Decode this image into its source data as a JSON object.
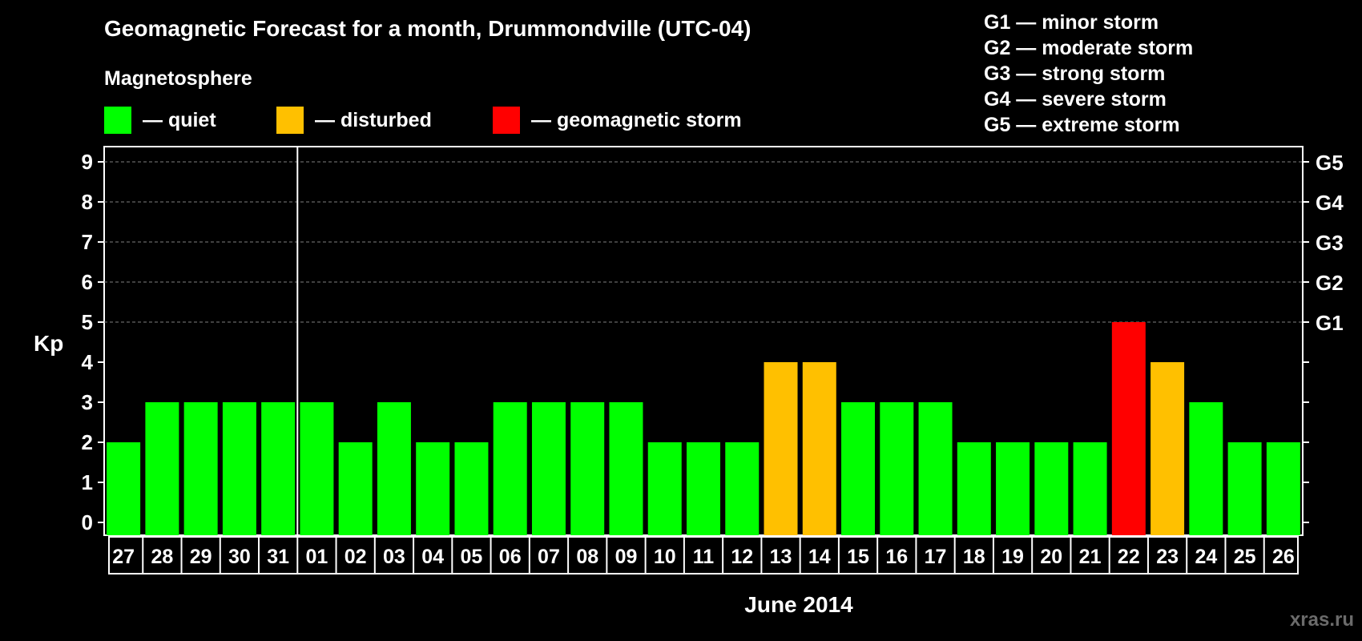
{
  "header": {
    "title": "Geomagnetic Forecast for a month, Drummondville (UTC-04)",
    "subtitle": "Magnetosphere"
  },
  "legend": [
    {
      "label": "— quiet",
      "color": "#00ff00"
    },
    {
      "label": "— disturbed",
      "color": "#ffc000"
    },
    {
      "label": "— geomagnetic storm",
      "color": "#ff0000"
    }
  ],
  "storm_levels": [
    {
      "text": "G1 — minor storm"
    },
    {
      "text": "G2 — moderate storm"
    },
    {
      "text": "G3 — strong storm"
    },
    {
      "text": "G4 — severe storm"
    },
    {
      "text": "G5 — extreme storm"
    }
  ],
  "watermark": "xras.ru",
  "chart_data": {
    "type": "bar",
    "title": "Geomagnetic Forecast for a month, Drummondville (UTC-04)",
    "xlabel": "June 2014",
    "ylabel": "Kp",
    "ylim": [
      0,
      9
    ],
    "yticks": [
      0,
      1,
      2,
      3,
      4,
      5,
      6,
      7,
      8,
      9
    ],
    "right_axis_labels": [
      {
        "value": 5,
        "label": "G1"
      },
      {
        "value": 6,
        "label": "G2"
      },
      {
        "value": 7,
        "label": "G3"
      },
      {
        "value": 8,
        "label": "G4"
      },
      {
        "value": 9,
        "label": "G5"
      }
    ],
    "month_separator_after": "31",
    "categories": [
      "27",
      "28",
      "29",
      "30",
      "31",
      "01",
      "02",
      "03",
      "04",
      "05",
      "06",
      "07",
      "08",
      "09",
      "10",
      "11",
      "12",
      "13",
      "14",
      "15",
      "16",
      "17",
      "18",
      "19",
      "20",
      "21",
      "22",
      "23",
      "24",
      "25",
      "26"
    ],
    "values": [
      2,
      3,
      3,
      3,
      3,
      3,
      2,
      3,
      2,
      2,
      3,
      3,
      3,
      3,
      2,
      2,
      2,
      4,
      4,
      3,
      3,
      3,
      2,
      2,
      2,
      2,
      5,
      4,
      3,
      2,
      2
    ],
    "colors": {
      "quiet": "#00ff00",
      "disturbed": "#ffc000",
      "storm": "#ff0000"
    },
    "grid_color": "#808080"
  }
}
